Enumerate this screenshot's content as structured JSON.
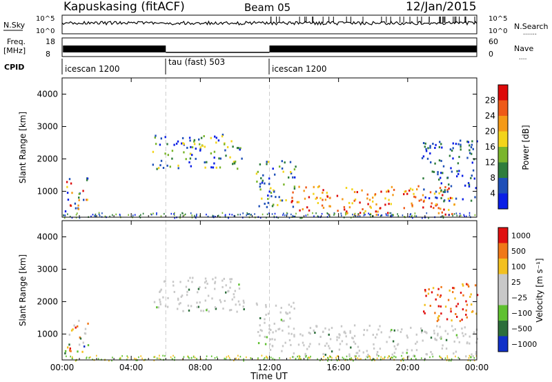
{
  "header": {
    "station": "Kapuskasing (fitACF)",
    "beam": "Beam 05",
    "date": "12/Jan/2015"
  },
  "top_panels": {
    "left_labels": {
      "nsky": "N.Sky",
      "freq_line1": "Freq.",
      "freq_line2": "[MHz]",
      "cpid": "CPID"
    },
    "right_labels": {
      "nsearch": "N.Search",
      "nsearch_dots": ".......",
      "nave": "Nave",
      "nave_dots": "...."
    },
    "nsky_ticks": [
      "10^5",
      "10^0"
    ],
    "nsearch_ticks": [
      "10^5",
      "10^0"
    ],
    "freq_ticks": [
      "18",
      "8"
    ],
    "nave_ticks": [
      "60",
      "0"
    ],
    "cpid_segments": [
      {
        "label": "icescan 1200",
        "start_hour": 0,
        "end_hour": 6
      },
      {
        "label": "tau (fast) 503",
        "start_hour": 6,
        "end_hour": 12
      },
      {
        "label": "icescan 1200",
        "start_hour": 12,
        "end_hour": 24
      }
    ]
  },
  "chart_data": [
    {
      "type": "heatmap",
      "name": "Power",
      "ylabel": "Slant Range [km]",
      "xlim": [
        0,
        24
      ],
      "ylim": [
        200,
        4500
      ],
      "yticks": [
        "1000",
        "2000",
        "3000",
        "4000"
      ],
      "colorbar": {
        "label": "Power [dB]",
        "ticks": [
          "4",
          "8",
          "12",
          "16",
          "20",
          "24",
          "28"
        ],
        "colors": [
          "#0a1ee6",
          "#1e4fb8",
          "#2f7d3c",
          "#7ab52c",
          "#f3d41a",
          "#f49a18",
          "#ee5a18",
          "#dd0a0a"
        ]
      },
      "regions": [
        {
          "t0": 0.1,
          "t1": 1.5,
          "r0": 400,
          "r1": 1500,
          "level": "mixed"
        },
        {
          "t0": 5.2,
          "t1": 10.5,
          "r0": 1700,
          "r1": 2800,
          "level": "mid"
        },
        {
          "t0": 11.2,
          "t1": 13.5,
          "r0": 500,
          "r1": 2000,
          "level": "mid"
        },
        {
          "t0": 13.2,
          "t1": 22.8,
          "r0": 300,
          "r1": 1200,
          "level": "high"
        },
        {
          "t0": 20.8,
          "t1": 24.0,
          "r0": 700,
          "r1": 2600,
          "level": "low"
        }
      ]
    },
    {
      "type": "heatmap",
      "name": "Velocity",
      "ylabel": "Slant Range [km]",
      "xlim": [
        0,
        24
      ],
      "ylim": [
        200,
        4500
      ],
      "yticks": [
        "1000",
        "2000",
        "3000",
        "4000"
      ],
      "colorbar": {
        "label": "Velocity [m s⁻¹]",
        "ticks": [
          "1000",
          "500",
          "100",
          "25",
          "−25",
          "−100",
          "−500",
          "−1000"
        ],
        "colors": [
          "#1030c8",
          "#2c6e3a",
          "#5fc030",
          "#c8c8c8",
          "#c8c8c8",
          "#f2c020",
          "#f07818",
          "#e01010"
        ]
      },
      "regions": [
        {
          "t0": 0.1,
          "t1": 1.5,
          "r0": 400,
          "r1": 1500,
          "level": "mixed"
        },
        {
          "t0": 5.2,
          "t1": 10.5,
          "r0": 1700,
          "r1": 2800,
          "level": "gray"
        },
        {
          "t0": 11.2,
          "t1": 13.5,
          "r0": 500,
          "r1": 2000,
          "level": "gray"
        },
        {
          "t0": 13.2,
          "t1": 24.0,
          "r0": 300,
          "r1": 1300,
          "level": "gray"
        },
        {
          "t0": 20.8,
          "t1": 24.0,
          "r0": 1400,
          "r1": 2600,
          "level": "orange"
        }
      ]
    }
  ],
  "x_axis": {
    "ticks": [
      "00:00",
      "04:00",
      "08:00",
      "12:00",
      "16:00",
      "20:00",
      "00:00"
    ],
    "label": "Time UT"
  }
}
